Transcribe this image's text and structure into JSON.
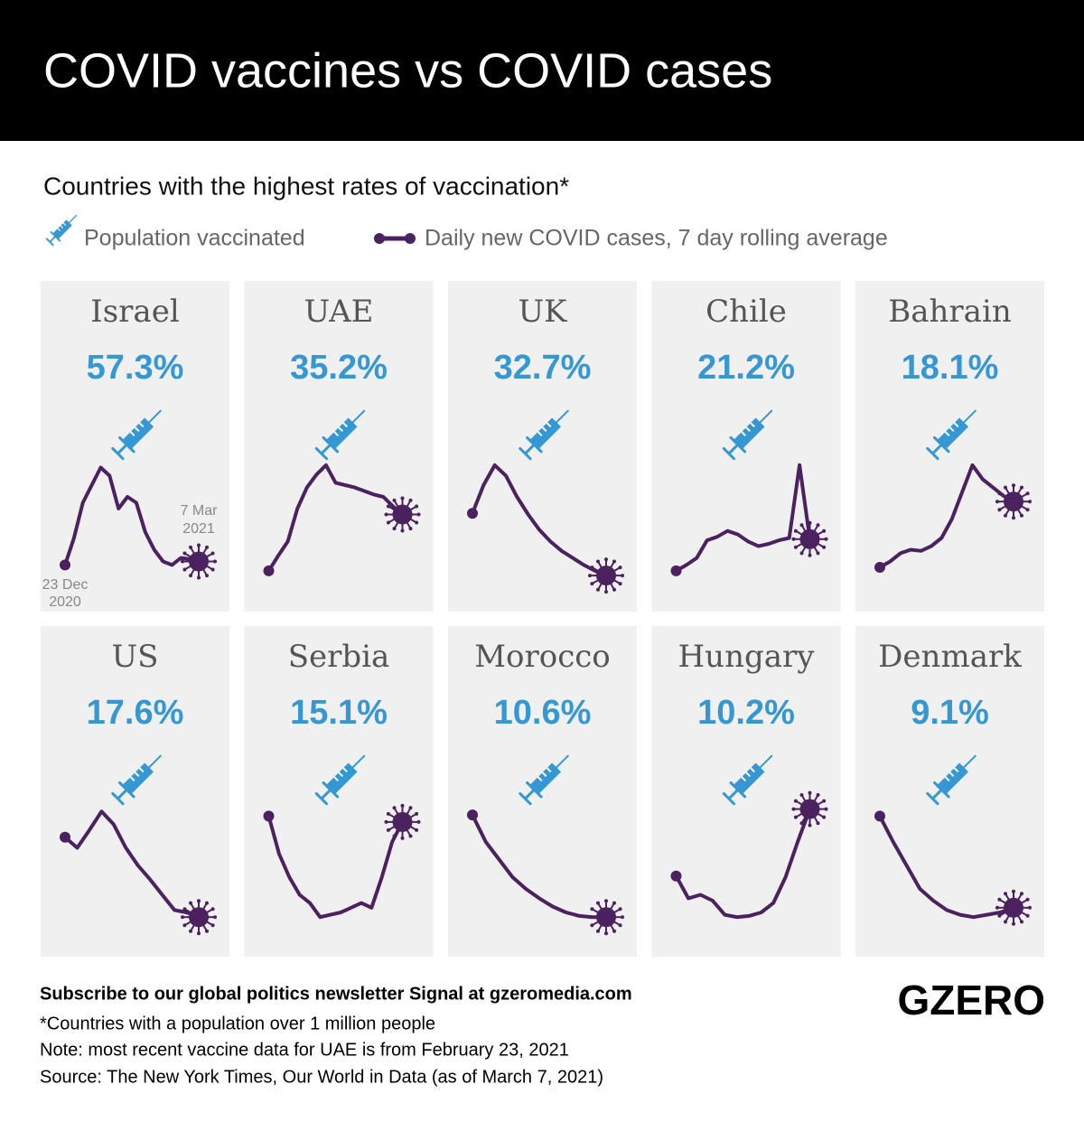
{
  "header": {
    "title": "COVID vaccines vs COVID cases"
  },
  "subtitle": "Countries with the highest rates of vaccination*",
  "legend": {
    "vaccinated": "Population vaccinated",
    "cases": "Daily new COVID cases, 7 day rolling average"
  },
  "annotations": {
    "start": [
      "23 Dec",
      "2020"
    ],
    "end": [
      "7 Mar",
      "2021"
    ]
  },
  "colors": {
    "panel": "#f0f0f0",
    "vaccine": "#3597d3",
    "line": "#4b2160"
  },
  "chart_data": [
    {
      "type": "line",
      "title": "Israel",
      "vaccinated": {
        "value": 57.3,
        "label": "57.3%"
      },
      "ylim": [
        0,
        100
      ],
      "values": [
        12,
        35,
        65,
        80,
        95,
        88,
        60,
        70,
        65,
        40,
        25,
        15,
        12,
        18,
        17,
        15
      ]
    },
    {
      "type": "line",
      "title": "UAE",
      "vaccinated": {
        "value": 35.2,
        "label": "35.2%"
      },
      "ylim": [
        0,
        100
      ],
      "values": [
        7,
        20,
        32,
        60,
        78,
        89,
        97,
        82,
        80,
        78,
        75,
        72,
        70,
        62,
        55
      ]
    },
    {
      "type": "line",
      "title": "UK",
      "vaccinated": {
        "value": 32.7,
        "label": "32.7%"
      },
      "ylim": [
        0,
        100
      ],
      "values": [
        56,
        80,
        97,
        88,
        70,
        55,
        42,
        32,
        24,
        18,
        12,
        7,
        3
      ]
    },
    {
      "type": "line",
      "title": "Chile",
      "vaccinated": {
        "value": 21.2,
        "label": "21.2%"
      },
      "ylim": [
        0,
        100
      ],
      "values": [
        7,
        12,
        18,
        33,
        36,
        41,
        38,
        32,
        28,
        30,
        33,
        35,
        97,
        34
      ]
    },
    {
      "type": "line",
      "title": "Bahrain",
      "vaccinated": {
        "value": 18.1,
        "label": "18.1%"
      },
      "ylim": [
        0,
        100
      ],
      "values": [
        10,
        15,
        22,
        25,
        24,
        28,
        35,
        51,
        74,
        97,
        85,
        78,
        71,
        66
      ]
    },
    {
      "type": "line",
      "title": "US",
      "vaccinated": {
        "value": 17.6,
        "label": "17.6%"
      },
      "ylim": [
        0,
        100
      ],
      "values": [
        74,
        65,
        80,
        96,
        85,
        65,
        50,
        38,
        25,
        12,
        10,
        6
      ]
    },
    {
      "type": "line",
      "title": "Serbia",
      "vaccinated": {
        "value": 15.1,
        "label": "15.1%"
      },
      "ylim": [
        0,
        100
      ],
      "values": [
        92,
        60,
        40,
        25,
        18,
        6,
        8,
        10,
        14,
        18,
        14,
        40,
        70,
        87
      ]
    },
    {
      "type": "line",
      "title": "Morocco",
      "vaccinated": {
        "value": 10.6,
        "label": "10.6%"
      },
      "ylim": [
        0,
        100
      ],
      "values": [
        93,
        70,
        55,
        40,
        30,
        22,
        15,
        10,
        7,
        6,
        6
      ]
    },
    {
      "type": "line",
      "title": "Hungary",
      "vaccinated": {
        "value": 10.2,
        "label": "10.2%"
      },
      "ylim": [
        0,
        100
      ],
      "values": [
        41,
        22,
        25,
        20,
        8,
        6,
        7,
        10,
        18,
        40,
        70,
        98
      ]
    },
    {
      "type": "line",
      "title": "Denmark",
      "vaccinated": {
        "value": 9.1,
        "label": "9.1%"
      },
      "ylim": [
        0,
        100
      ],
      "values": [
        92,
        70,
        50,
        30,
        20,
        12,
        8,
        6,
        8,
        10,
        14
      ]
    }
  ],
  "footer": {
    "subscribe": "Subscribe to our global politics newsletter Signal at gzeromedia.com",
    "notes": [
      "*Countries with a population over 1 million people",
      "Note: most recent vaccine data for UAE is from February 23, 2021",
      "Source: The New York Times, Our World in Data (as of March 7, 2021)"
    ],
    "logo": "GZERO"
  }
}
